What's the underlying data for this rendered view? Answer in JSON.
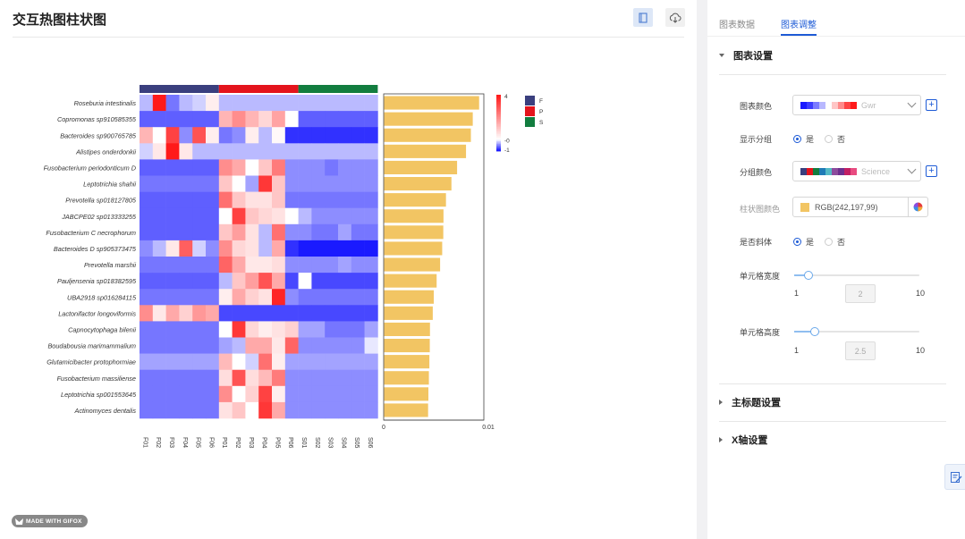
{
  "header": {
    "title": "交互热图柱状图"
  },
  "chart_data": {
    "type": "heatmap",
    "rows": [
      "Roseburia intestinalis",
      "Copromonas sp910585355",
      "Bacteroides sp900765785",
      "Alistipes onderdonkii",
      "Fusobacterium periodonticum D",
      "Leptotrichia shahii",
      "Prevotella sp018127805",
      "JABCPE02 sp013333255",
      "Fusobacterium C necrophorum",
      "Bacteroides D sp905373475",
      "Prevotella marshii",
      "Pauljensenia sp018382595",
      "UBA2918 sp016284115",
      "Lactonifactor longoviformis",
      "Capnocytophaga bilenii",
      "Boudabousia marimammalium",
      "Glutamicibacter protophormiae",
      "Fusobacterium massiliense",
      "Leptotrichia sp001553645",
      "Actinomyces dentalis"
    ],
    "columns": [
      "F01",
      "F02",
      "F03",
      "F04",
      "F05",
      "F06",
      "P01",
      "P02",
      "P03",
      "P04",
      "P05",
      "P06",
      "S01",
      "S02",
      "S03",
      "S04",
      "S05",
      "S06"
    ],
    "groups": [
      {
        "name": "F",
        "color": "#3a3f7e",
        "columns": [
          "F01",
          "F02",
          "F03",
          "F04",
          "F05",
          "F06"
        ]
      },
      {
        "name": "P",
        "color": "#e4141c",
        "columns": [
          "P01",
          "P02",
          "P03",
          "P04",
          "P05",
          "P06"
        ]
      },
      {
        "name": "S",
        "color": "#127d3f",
        "columns": [
          "S01",
          "S02",
          "S03",
          "S04",
          "S05",
          "S06"
        ]
      }
    ],
    "matrix": [
      [
        -0.3,
        4,
        -0.6,
        -0.3,
        -0.2,
        0.3,
        -0.3,
        -0.3,
        -0.3,
        -0.3,
        -0.3,
        -0.3,
        -0.3,
        -0.3,
        -0.3,
        -0.3,
        -0.3,
        -0.3
      ],
      [
        -0.7,
        -0.7,
        -0.7,
        -0.7,
        -0.7,
        -0.7,
        1.3,
        2,
        1.3,
        0.7,
        1.6,
        0,
        -0.7,
        -0.7,
        -0.7,
        -0.7,
        -0.7,
        -0.7
      ],
      [
        1.3,
        0,
        3.3,
        -0.5,
        3,
        0.3,
        -0.6,
        -0.5,
        0.3,
        -0.3,
        0.1,
        -0.9,
        -0.9,
        -0.9,
        -0.9,
        -0.9,
        -0.9,
        -0.9
      ],
      [
        -0.2,
        0.4,
        4,
        0.4,
        -0.3,
        -0.3,
        -0.3,
        -0.3,
        -0.3,
        -0.3,
        -0.3,
        -0.3,
        -0.3,
        -0.3,
        -0.3,
        -0.3,
        -0.3,
        -0.3
      ],
      [
        -0.7,
        -0.7,
        -0.7,
        -0.7,
        -0.7,
        -0.7,
        2,
        1.5,
        0,
        1,
        2.3,
        -0.5,
        -0.5,
        -0.5,
        -0.6,
        -0.5,
        -0.5,
        -0.5
      ],
      [
        -0.6,
        -0.6,
        -0.6,
        -0.6,
        -0.6,
        -0.6,
        1,
        0,
        -0.4,
        3.5,
        1,
        -0.5,
        -0.5,
        -0.5,
        -0.5,
        -0.5,
        -0.5,
        -0.5
      ],
      [
        -0.7,
        -0.7,
        -0.7,
        -0.7,
        -0.7,
        -0.7,
        2.5,
        1,
        0.5,
        0.5,
        1,
        -0.6,
        -0.6,
        -0.6,
        -0.6,
        -0.6,
        -0.6,
        -0.6
      ],
      [
        -0.7,
        -0.7,
        -0.7,
        -0.7,
        -0.7,
        -0.7,
        0,
        3.3,
        1,
        0.7,
        0.5,
        0,
        -0.3,
        -0.5,
        -0.5,
        -0.5,
        -0.5,
        -0.5
      ],
      [
        -0.7,
        -0.7,
        -0.7,
        -0.7,
        -0.7,
        -0.7,
        1,
        1.7,
        0.5,
        -0.3,
        2.5,
        -0.5,
        -0.5,
        -0.6,
        -0.6,
        -0.4,
        -0.6,
        -0.6
      ],
      [
        -0.5,
        -0.3,
        0.4,
        2.8,
        -0.2,
        -0.5,
        2,
        0.7,
        0.5,
        -0.3,
        1.5,
        -0.9,
        -1,
        -1,
        -1,
        -1,
        -1,
        -1
      ],
      [
        -0.6,
        -0.6,
        -0.6,
        -0.6,
        -0.6,
        -0.6,
        2.7,
        1.5,
        0.4,
        0.4,
        0.6,
        -0.5,
        -0.5,
        -0.5,
        -0.5,
        -0.4,
        -0.5,
        -0.5
      ],
      [
        -0.7,
        -0.7,
        -0.7,
        -0.7,
        -0.7,
        -0.7,
        -0.3,
        1,
        1.7,
        3,
        1.5,
        -0.8,
        0,
        -0.8,
        -0.8,
        -0.8,
        -0.8,
        -0.8
      ],
      [
        -0.6,
        -0.6,
        -0.6,
        -0.6,
        -0.6,
        -0.6,
        0.3,
        1.5,
        0.8,
        0.5,
        3.8,
        -0.5,
        -0.6,
        -0.6,
        -0.6,
        -0.6,
        -0.6,
        -0.6
      ],
      [
        2,
        0.4,
        1.5,
        0.8,
        1.8,
        1.5,
        -0.8,
        -0.8,
        -0.8,
        -0.8,
        -0.8,
        -0.8,
        -0.8,
        -0.8,
        -0.8,
        -0.8,
        -0.8,
        -0.8
      ],
      [
        -0.6,
        -0.6,
        -0.6,
        -0.6,
        -0.6,
        -0.6,
        0,
        3.5,
        0.7,
        0.3,
        0.5,
        0.8,
        -0.4,
        -0.4,
        -0.6,
        -0.6,
        -0.6,
        -0.4
      ],
      [
        -0.6,
        -0.6,
        -0.6,
        -0.6,
        -0.6,
        -0.6,
        -0.4,
        -0.3,
        1.5,
        1.5,
        0.4,
        2.7,
        -0.5,
        -0.5,
        -0.5,
        -0.5,
        -0.5,
        -0.1
      ],
      [
        -0.4,
        -0.4,
        -0.4,
        -0.4,
        -0.4,
        -0.4,
        1.2,
        0,
        -0.2,
        2.5,
        0.3,
        -0.4,
        -0.4,
        -0.4,
        -0.4,
        -0.4,
        -0.4,
        -0.4
      ],
      [
        -0.6,
        -0.6,
        -0.6,
        -0.6,
        -0.6,
        -0.6,
        0.6,
        3,
        0.6,
        1.2,
        2.3,
        -0.5,
        -0.5,
        -0.5,
        -0.5,
        -0.5,
        -0.5,
        -0.5
      ],
      [
        -0.6,
        -0.6,
        -0.6,
        -0.6,
        -0.6,
        -0.6,
        2,
        0,
        0.8,
        3.3,
        0.3,
        -0.5,
        -0.5,
        -0.5,
        -0.5,
        -0.5,
        -0.5,
        -0.5
      ],
      [
        -0.6,
        -0.6,
        -0.6,
        -0.6,
        -0.6,
        -0.6,
        0.5,
        1,
        0,
        3.5,
        1.5,
        -0.5,
        -0.5,
        -0.5,
        -0.5,
        -0.5,
        -0.5,
        -0.5
      ]
    ],
    "color_scale": {
      "min": -1,
      "mid": 0,
      "max": 4,
      "colors": [
        "#1a1aff",
        "#ffffff",
        "#ff1a1a"
      ],
      "tick_labels": [
        "4",
        "-0",
        "-1"
      ]
    },
    "bars": {
      "color": "#f2c563",
      "values": [
        0.00957,
        0.00893,
        0.00874,
        0.00825,
        0.00735,
        0.00678,
        0.00623,
        0.00598,
        0.00596,
        0.00585,
        0.00564,
        0.00529,
        0.005,
        0.0049,
        0.00462,
        0.0046,
        0.00456,
        0.00451,
        0.00446,
        0.00443
      ],
      "xlim": [
        0,
        0.01
      ],
      "tick_labels": [
        "0",
        "0.01"
      ]
    }
  },
  "footer": {
    "logo_text": "MADE WITH GIFOX"
  },
  "panel": {
    "tabs": [
      {
        "label": "图表数据"
      },
      {
        "label": "图表调整"
      }
    ],
    "active_tab": "图表调整",
    "sections": {
      "chart_settings": "图表设置",
      "main_title": "主标题设置",
      "x_axis": "X轴设置"
    },
    "chart_color": {
      "label": "图表颜色",
      "value": "Gwr",
      "swatches": [
        "#1a1aff",
        "#3d3dff",
        "#7b7bff",
        "#b8b8ff",
        "#ffffff",
        "#ffc6c6",
        "#ff8a8a",
        "#ff4444",
        "#ff1a1a"
      ]
    },
    "show_group": {
      "label": "显示分组",
      "options": [
        "是",
        "否"
      ],
      "selected": "是"
    },
    "group_color": {
      "label": "分组颜色",
      "value": "Science",
      "swatches": [
        "#3a3f7e",
        "#e4141c",
        "#127d3f",
        "#1f7bb6",
        "#53b9c5",
        "#8c4c9c",
        "#6d2f8e",
        "#c21f63",
        "#e84b80"
      ]
    },
    "bar_color": {
      "label": "柱状图颜色",
      "value": "RGB(242,197,99)",
      "color": "#f2c563"
    },
    "italic": {
      "label": "是否斜体",
      "options": [
        "是",
        "否"
      ],
      "selected": "是"
    },
    "cell_width": {
      "label": "单元格宽度",
      "min_label": "1",
      "max_label": "10",
      "value": "2",
      "level": 0.111
    },
    "cell_height": {
      "label": "单元格高度",
      "min_label": "1",
      "max_label": "10",
      "value": "2.5",
      "level": 0.167
    }
  }
}
